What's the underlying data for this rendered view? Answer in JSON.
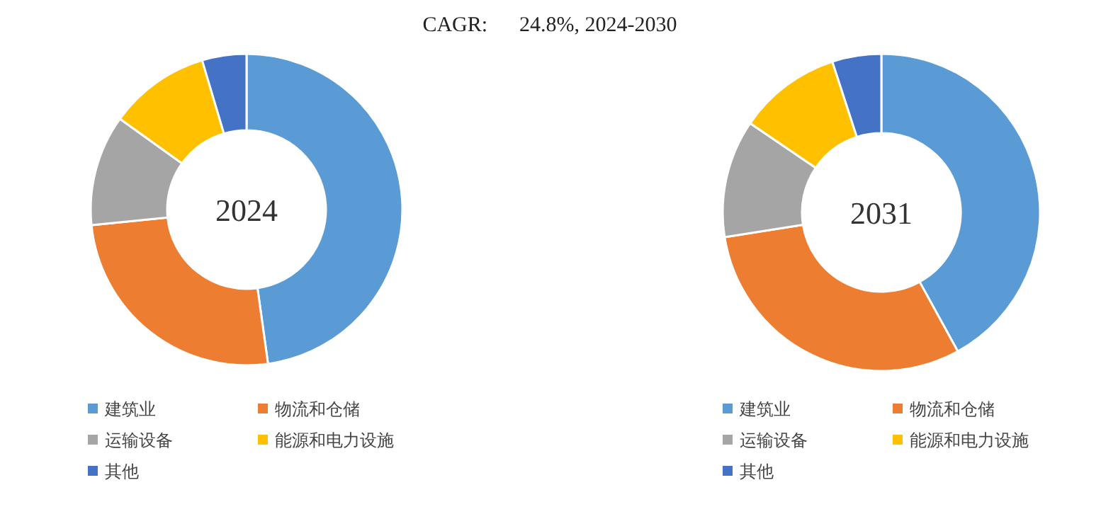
{
  "chart_data": [
    {
      "type": "donut",
      "title": "2024",
      "annotations": [
        "CAGR:      24.8%, 2024-2030"
      ],
      "categories": [
        "建筑业",
        "物流和仓储",
        "运输设备",
        "能源和电力设施",
        "其他"
      ],
      "values": [
        47.8,
        25.6,
        11.5,
        10.5,
        4.6
      ],
      "colors": [
        "#5b9bd5",
        "#ed7d31",
        "#a5a5a5",
        "#ffc000",
        "#4472c4"
      ],
      "legend": "bottom"
    },
    {
      "type": "donut",
      "title": "2031",
      "categories": [
        "建筑业",
        "物流和仓储",
        "运输设备",
        "能源和电力设施",
        "其他"
      ],
      "values": [
        42,
        30.5,
        12,
        10.5,
        5
      ],
      "colors": [
        "#5b9bd5",
        "#ed7d31",
        "#a5a5a5",
        "#ffc000",
        "#4472c4"
      ],
      "legend": "bottom"
    }
  ]
}
